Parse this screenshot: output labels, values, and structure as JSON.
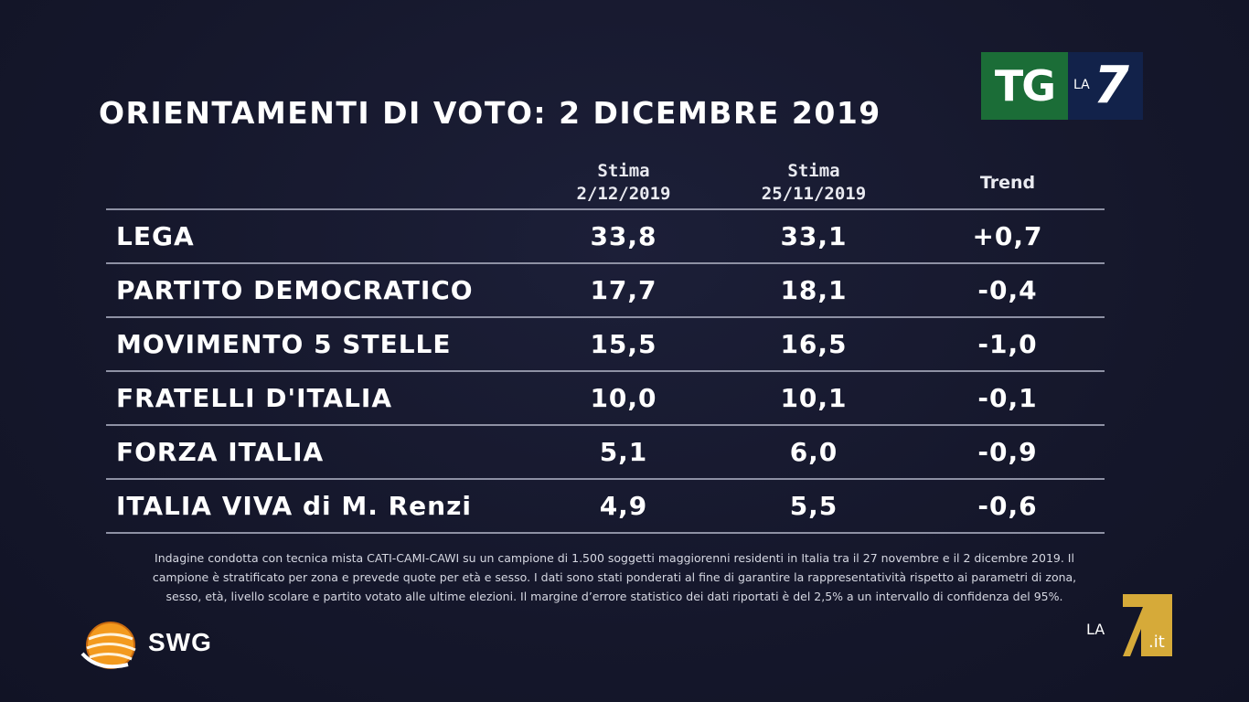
{
  "title": "ORIENTAMENTI DI VOTO: 2 DICEMBRE 2019",
  "logo_tg": {
    "tg": "TG",
    "la": "LA",
    "seven": "7"
  },
  "columns": {
    "col1_line1": "Stima",
    "col1_line2": "2/12/2019",
    "col2_line1": "Stima",
    "col2_line2": "25/11/2019",
    "col3": "Trend"
  },
  "chart_data": {
    "type": "table",
    "title": "ORIENTAMENTI DI VOTO: 2 DICEMBRE 2019",
    "headers": [
      "",
      "Stima 2/12/2019",
      "Stima 25/11/2019",
      "Trend"
    ],
    "rows": [
      {
        "party": "LEGA",
        "stima_2_12": "33,8",
        "stima_25_11": "33,1",
        "trend": "+0,7"
      },
      {
        "party": "PARTITO DEMOCRATICO",
        "stima_2_12": "17,7",
        "stima_25_11": "18,1",
        "trend": "-0,4"
      },
      {
        "party": "MOVIMENTO 5 STELLE",
        "stima_2_12": "15,5",
        "stima_25_11": "16,5",
        "trend": "-1,0"
      },
      {
        "party": "FRATELLI D'ITALIA",
        "stima_2_12": "10,0",
        "stima_25_11": "10,1",
        "trend": "-0,1"
      },
      {
        "party": "FORZA ITALIA",
        "stima_2_12": "5,1",
        "stima_25_11": "6,0",
        "trend": "-0,9"
      },
      {
        "party": "ITALIA VIVA di M. Renzi",
        "stima_2_12": "4,9",
        "stima_25_11": "5,5",
        "trend": "-0,6"
      }
    ]
  },
  "footnote": {
    "line1": "Indagine condotta con tecnica mista CATI-CAMI-CAWI su un campione di 1.500 soggetti maggiorenni residenti in Italia tra il 27 novembre e il 2 dicembre 2019. Il",
    "line2": "campione è stratificato per zona e prevede quote per età e sesso. I dati sono stati ponderati al fine di garantire la rappresentatività rispetto ai parametri di zona,",
    "line3": "sesso, età, livello scolare e partito votato alle ultime elezioni. Il margine d’errore statistico dei dati riportati è del 2,5% a un intervallo di confidenza del 95%."
  },
  "swg": {
    "label": "SWG"
  },
  "la7it": {
    "la": "LA",
    "seven": "7",
    "it": ".it"
  },
  "colors": {
    "background": "#16182d",
    "rule": "#8e91a4",
    "tg_green": "#1b6d37",
    "tg_blue": "#12224a",
    "swg_orange": "#f39a1e",
    "la7_gold": "#e0b23a"
  }
}
